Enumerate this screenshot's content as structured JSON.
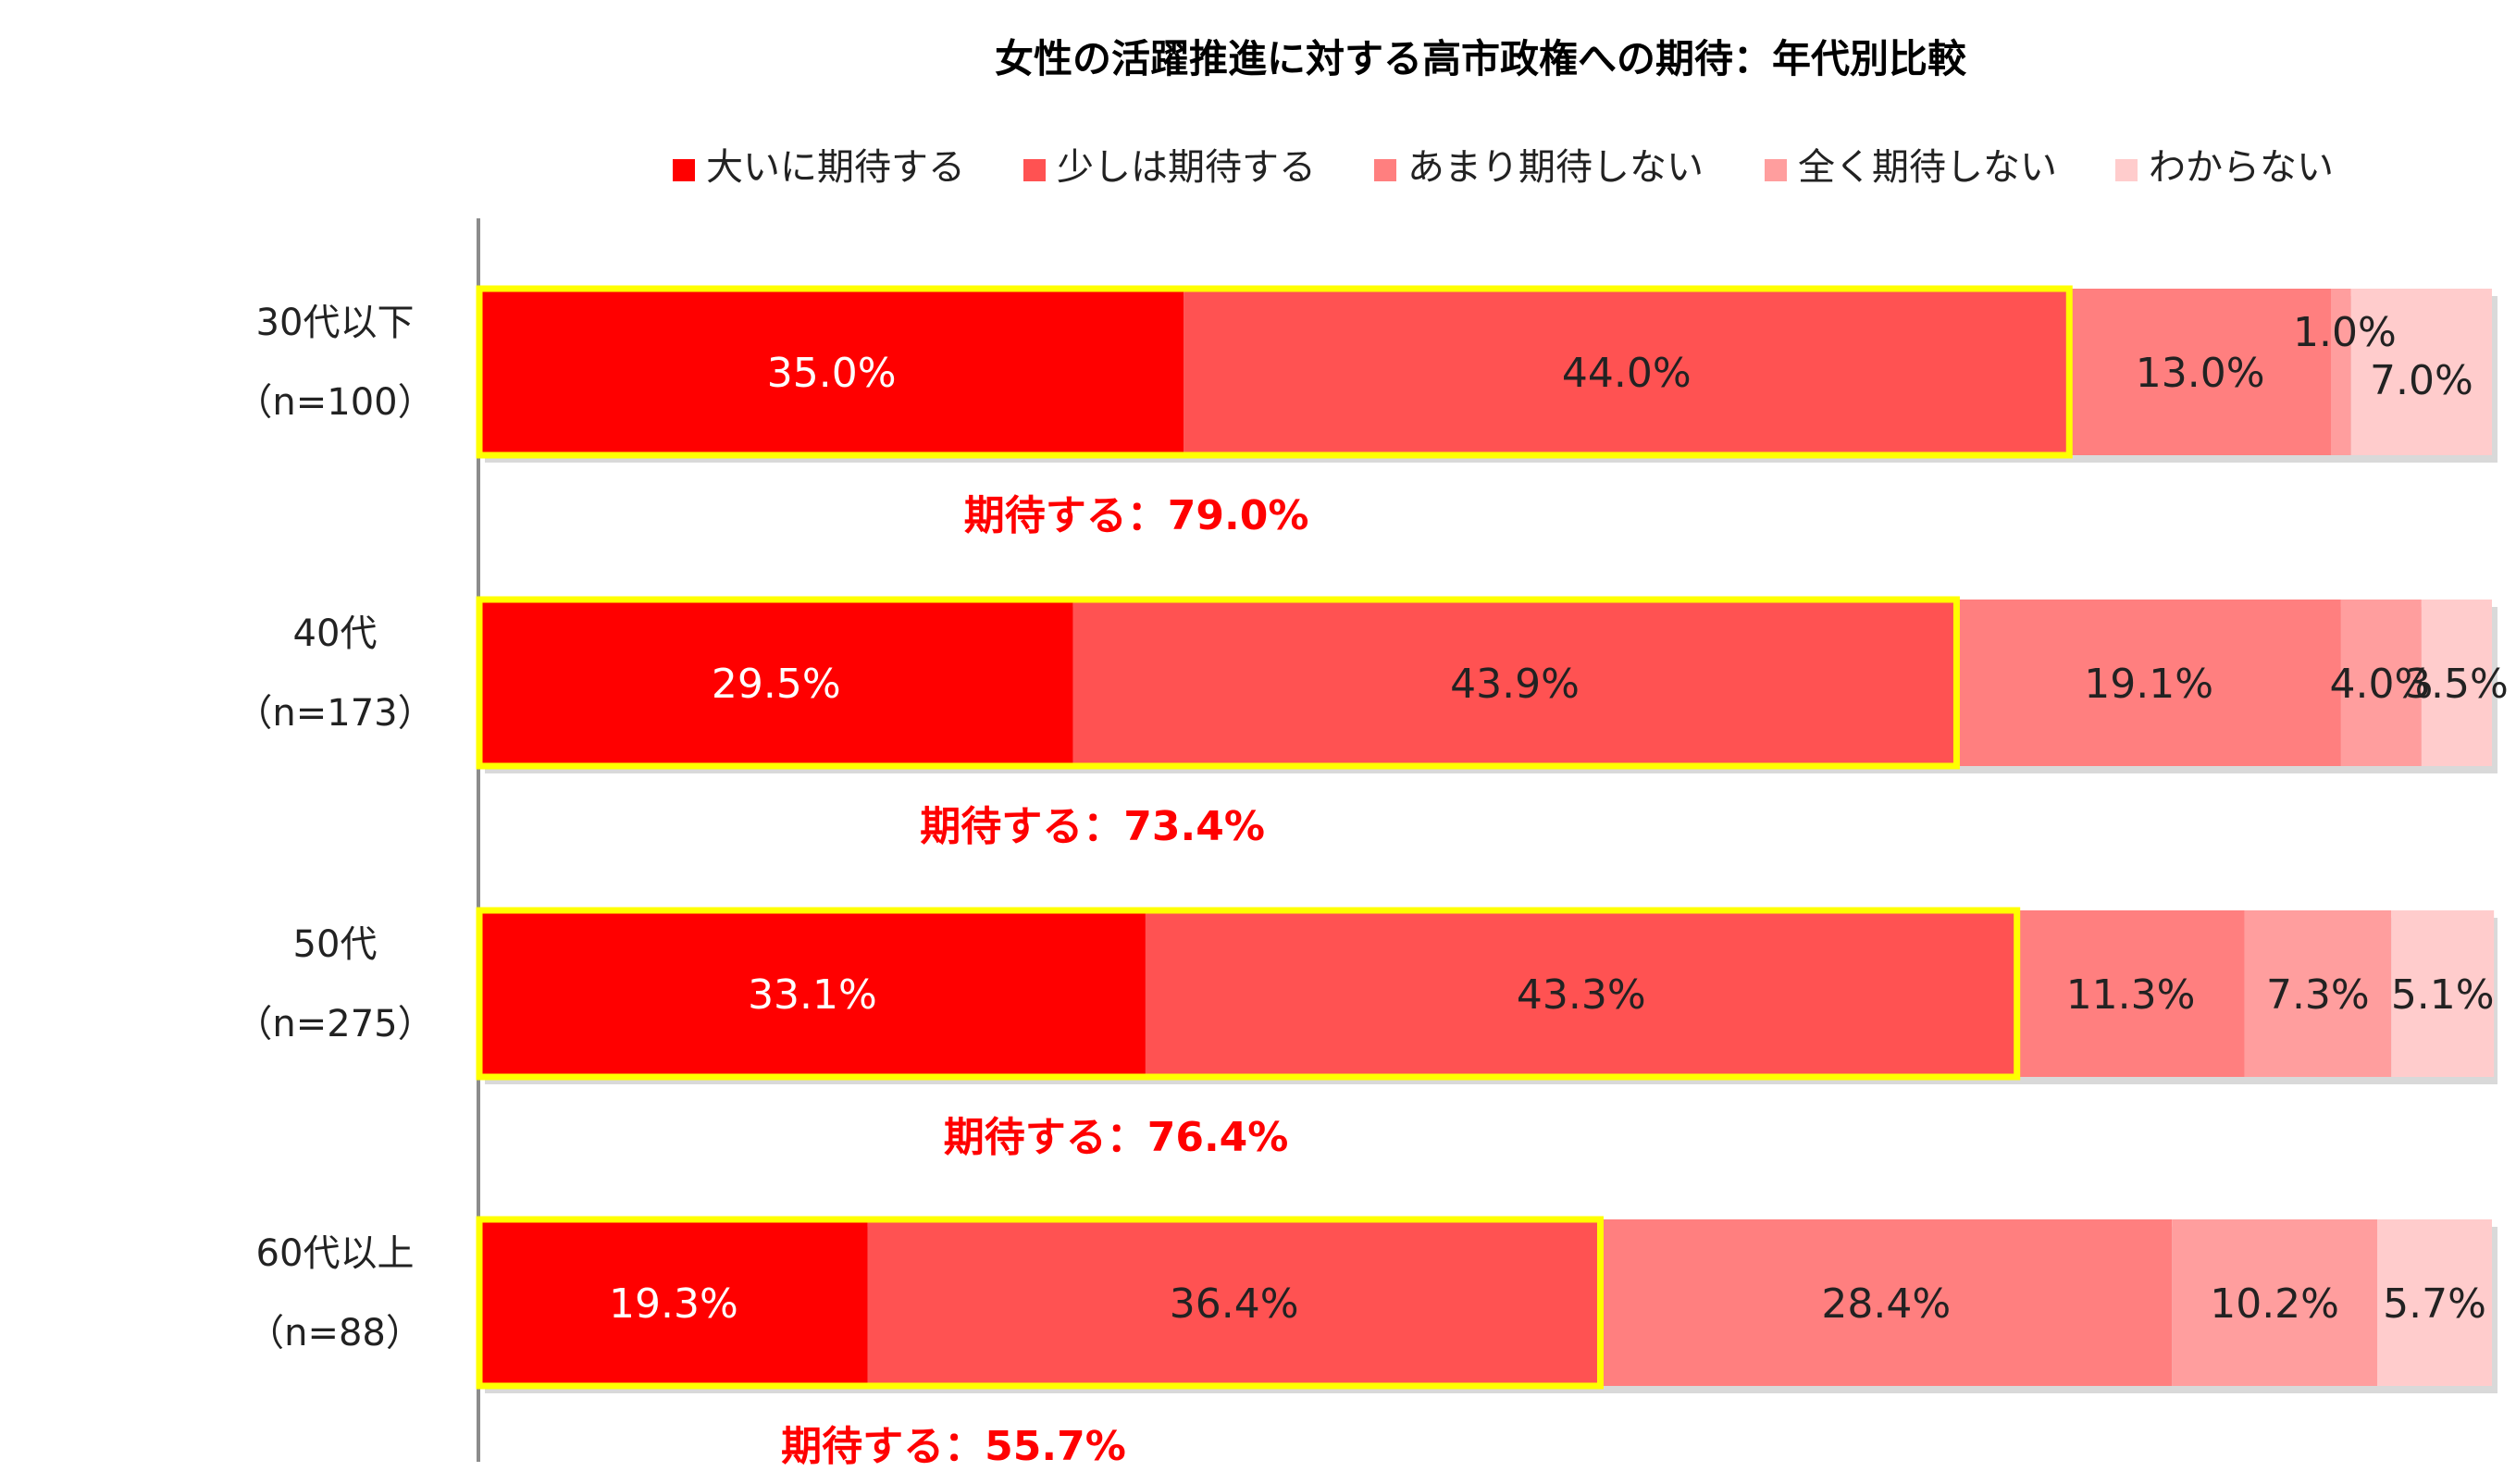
{
  "chart_data": {
    "type": "bar",
    "orientation": "horizontal",
    "stacked": true,
    "title": "女性の活躍推進に対する高市政権への期待：年代別比較",
    "xlim": [
      0,
      100
    ],
    "grid": false,
    "legend_position": "top",
    "categories": [
      "30代以下",
      "40代",
      "50代",
      "60代以上"
    ],
    "sample_sizes": [
      "（n=100）",
      "（n=173）",
      "（n=275）",
      "（n=88）"
    ],
    "series": [
      {
        "name": "大いに期待する",
        "color": "#ff0000",
        "label_color": "#ffffff",
        "values": [
          35.0,
          29.5,
          33.1,
          19.3
        ],
        "labels": [
          "35.0%",
          "29.5%",
          "33.1%",
          "19.3%"
        ]
      },
      {
        "name": "少しは期待する",
        "color": "#ff5252",
        "label_color": "#222222",
        "values": [
          44.0,
          43.9,
          43.3,
          36.4
        ],
        "labels": [
          "44.0%",
          "43.9%",
          "43.3%",
          "36.4%"
        ]
      },
      {
        "name": "あまり期待しない",
        "color": "#ff7f7f",
        "label_color": "#222222",
        "values": [
          13.0,
          19.1,
          11.3,
          28.4
        ],
        "labels": [
          "13.0%",
          "19.1%",
          "11.3%",
          "28.4%"
        ]
      },
      {
        "name": "全く期待しない",
        "color": "#ff9e9e",
        "label_color": "#222222",
        "values": [
          1.0,
          4.0,
          7.3,
          10.2
        ],
        "labels": [
          "1.0%",
          "4.0%",
          "7.3%",
          "10.2%"
        ]
      },
      {
        "name": "わからない",
        "color": "#ffcccc",
        "label_color": "#222222",
        "values": [
          7.0,
          3.5,
          5.1,
          5.7
        ],
        "labels": [
          "7.0%",
          "3.5%",
          "5.1%",
          "5.7%"
        ]
      }
    ],
    "summary": {
      "prefix": "期待する：",
      "values": [
        79.0,
        73.4,
        76.4,
        55.7
      ],
      "labels": [
        "期待する：79.0%",
        "期待する：73.4%",
        "期待する：76.4%",
        "期待する：55.7%"
      ],
      "color": "#ff0000",
      "highlight_color": "#ffff00"
    }
  }
}
